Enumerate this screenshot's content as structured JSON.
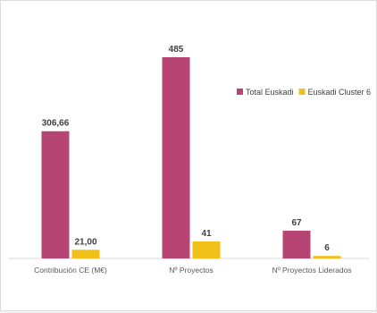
{
  "chart_data": {
    "type": "bar",
    "categories": [
      "Contribución CE (M€)",
      "Nº Proyectos",
      "Nº Proyectos Liderados"
    ],
    "series": [
      {
        "name": "Total Euskadi",
        "values": [
          306.66,
          485,
          67
        ],
        "labels": [
          "306,66",
          "485",
          "67"
        ],
        "color": "#b64574"
      },
      {
        "name": "Euskadi Cluster 6",
        "values": [
          21.0,
          41,
          6
        ],
        "labels": [
          "21,00",
          "41",
          "6"
        ],
        "color": "#f2c119"
      }
    ],
    "ylim": [
      0,
      485
    ],
    "legend": "right",
    "grid": false,
    "title": "",
    "xlabel": "",
    "ylabel": ""
  }
}
